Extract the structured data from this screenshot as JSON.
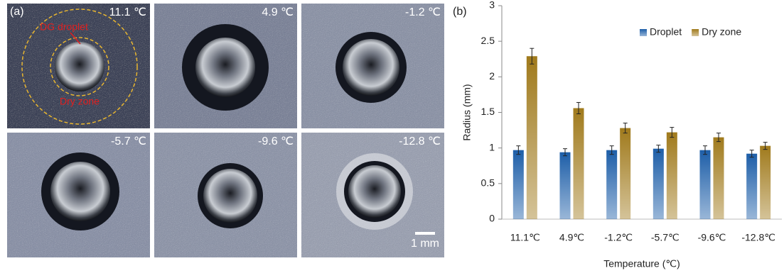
{
  "panel_a": {
    "label": "(a)",
    "temperatures": [
      "11.1 ℃",
      "4.9 ℃",
      "-1.2 ℃",
      "-5.7 ℃",
      "-9.6 ℃",
      "-12.8 ℃"
    ],
    "droplet_label": "DG droplet",
    "dry_zone_label": "Dry zone",
    "scale_bar": "1 mm"
  },
  "panel_b": {
    "label": "(b)"
  },
  "chart_data": {
    "type": "bar",
    "xlabel": "Temperature (℃)",
    "ylabel": "Radius (mm)",
    "categories": [
      "11.1℃",
      "4.9℃",
      "-1.2℃",
      "-5.7℃",
      "-9.6℃",
      "-12.8℃"
    ],
    "series": [
      {
        "name": "Droplet",
        "color": "#1d5ea8",
        "values": [
          0.97,
          0.94,
          0.97,
          0.99,
          0.97,
          0.92
        ],
        "errors": [
          0.06,
          0.05,
          0.06,
          0.05,
          0.06,
          0.05
        ]
      },
      {
        "name": "Dry zone",
        "color": "#a07a1c",
        "values": [
          2.29,
          1.56,
          1.28,
          1.22,
          1.15,
          1.03
        ],
        "errors": [
          0.11,
          0.08,
          0.07,
          0.07,
          0.06,
          0.05
        ]
      }
    ],
    "ylim": [
      0,
      3
    ],
    "yticks": [
      0,
      0.5,
      1,
      1.5,
      2,
      2.5,
      3
    ],
    "legend": "top-right",
    "grid": false
  }
}
